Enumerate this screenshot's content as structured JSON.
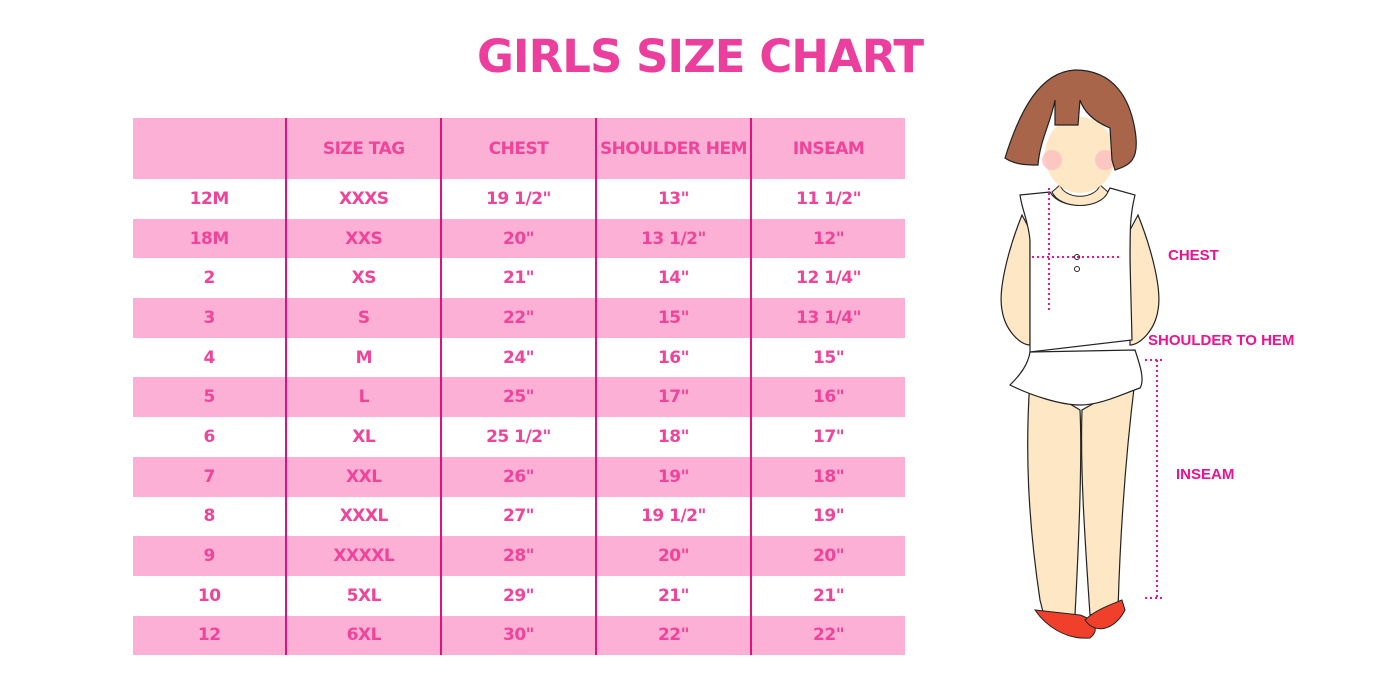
{
  "title": "GIRLS SIZE CHART",
  "table": {
    "headers": [
      "",
      "SIZE TAG",
      "CHEST",
      "SHOULDER HEM",
      "INSEAM"
    ],
    "rows": [
      [
        "12M",
        "XXXS",
        "19 1/2\"",
        "13\"",
        "11 1/2\""
      ],
      [
        "18M",
        "XXS",
        "20\"",
        "13 1/2\"",
        "12\""
      ],
      [
        "2",
        "XS",
        "21\"",
        "14\"",
        "12 1/4\""
      ],
      [
        "3",
        "S",
        "22\"",
        "15\"",
        "13 1/4\""
      ],
      [
        "4",
        "M",
        "24\"",
        "16\"",
        "15\""
      ],
      [
        "5",
        "L",
        "25\"",
        "17\"",
        "16\""
      ],
      [
        "6",
        "XL",
        "25 1/2\"",
        "18\"",
        "17\""
      ],
      [
        "7",
        "XXL",
        "26\"",
        "19\"",
        "18\""
      ],
      [
        "8",
        "XXXL",
        "27\"",
        "19 1/2\"",
        "19\""
      ],
      [
        "9",
        "XXXXL",
        "28\"",
        "20\"",
        "20\""
      ],
      [
        "10",
        "5XL",
        "29\"",
        "21\"",
        "21\""
      ],
      [
        "12",
        "6XL",
        "30\"",
        "22\"",
        "22\""
      ]
    ]
  },
  "figure": {
    "labels": {
      "chest": "CHEST",
      "shoulder_to_hem": "SHOULDER TO HEM",
      "inseam": "INSEAM"
    }
  },
  "colors": {
    "title": "#ec3e9c",
    "row_fill": "#fdb0d6",
    "text": "#f0449a",
    "divider": "#e0107f",
    "measure": "#ee1190"
  }
}
